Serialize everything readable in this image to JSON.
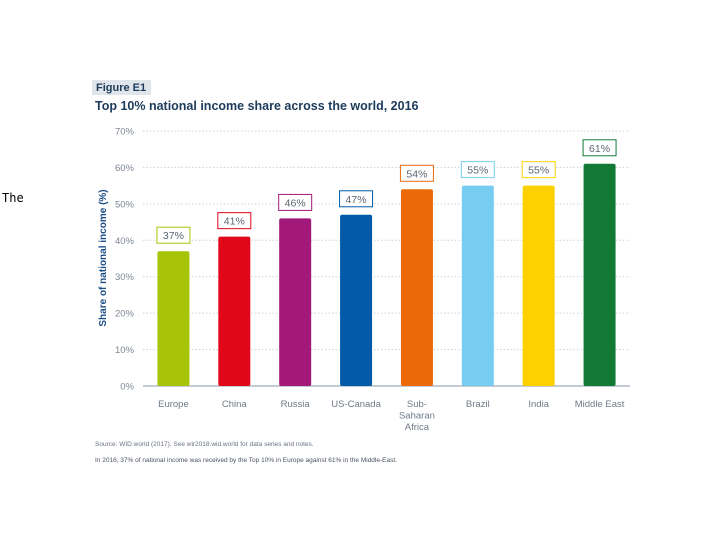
{
  "side_text": "The",
  "figure_label": "Figure E1",
  "chart_data": {
    "type": "bar",
    "title": "Top 10% national income share across the world, 2016",
    "xlabel": "",
    "ylabel": "Share of national income (%)",
    "ylim": [
      0,
      70
    ],
    "yticks": [
      "0%",
      "10%",
      "20%",
      "30%",
      "40%",
      "50%",
      "60%",
      "70%"
    ],
    "grid": true,
    "categories": [
      [
        "Europe"
      ],
      [
        "China"
      ],
      [
        "Russia"
      ],
      [
        "US-Canada"
      ],
      [
        "Sub-",
        "Saharan",
        "Africa"
      ],
      [
        "Brazil"
      ],
      [
        "India"
      ],
      [
        "Middle East"
      ]
    ],
    "values": [
      37,
      41,
      46,
      47,
      54,
      55,
      55,
      61
    ],
    "data_labels": [
      "37%",
      "41%",
      "46%",
      "47%",
      "54%",
      "55%",
      "55%",
      "61%"
    ],
    "colors": [
      "#a7c409",
      "#e0071b",
      "#a2197a",
      "#005aa8",
      "#ec6909",
      "#76ccf1",
      "#fdd100",
      "#137a36"
    ]
  },
  "source_text": "Source: WID.world (2017). See wir2018.wid.world for data series and notes.",
  "note_text": "In 2016, 37% of national income was received by the Top 10% in Europe against 61% in the Middle-East."
}
